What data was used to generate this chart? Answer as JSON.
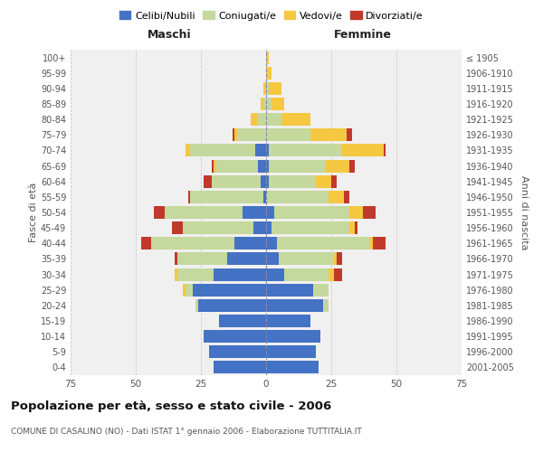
{
  "age_groups": [
    "0-4",
    "5-9",
    "10-14",
    "15-19",
    "20-24",
    "25-29",
    "30-34",
    "35-39",
    "40-44",
    "45-49",
    "50-54",
    "55-59",
    "60-64",
    "65-69",
    "70-74",
    "75-79",
    "80-84",
    "85-89",
    "90-94",
    "95-99",
    "100+"
  ],
  "birth_years": [
    "2001-2005",
    "1996-2000",
    "1991-1995",
    "1986-1990",
    "1981-1985",
    "1976-1980",
    "1971-1975",
    "1966-1970",
    "1961-1965",
    "1956-1960",
    "1951-1955",
    "1946-1950",
    "1941-1945",
    "1936-1940",
    "1931-1935",
    "1926-1930",
    "1921-1925",
    "1916-1920",
    "1911-1915",
    "1906-1910",
    "≤ 1905"
  ],
  "males": {
    "celibe": [
      20,
      22,
      24,
      18,
      26,
      28,
      20,
      15,
      12,
      5,
      9,
      1,
      2,
      3,
      4,
      0,
      0,
      0,
      0,
      0,
      0
    ],
    "coniugato": [
      0,
      0,
      0,
      0,
      1,
      3,
      14,
      19,
      32,
      27,
      30,
      28,
      19,
      16,
      25,
      11,
      3,
      1,
      0,
      0,
      0
    ],
    "vedovo": [
      0,
      0,
      0,
      0,
      0,
      1,
      1,
      0,
      0,
      0,
      0,
      0,
      0,
      1,
      2,
      1,
      3,
      1,
      1,
      0,
      0
    ],
    "divorziato": [
      0,
      0,
      0,
      0,
      0,
      0,
      0,
      1,
      4,
      4,
      4,
      1,
      3,
      1,
      0,
      1,
      0,
      0,
      0,
      0,
      0
    ]
  },
  "females": {
    "nubile": [
      20,
      19,
      21,
      17,
      22,
      18,
      7,
      5,
      4,
      2,
      3,
      0,
      1,
      1,
      1,
      0,
      0,
      0,
      0,
      0,
      0
    ],
    "coniugata": [
      0,
      0,
      0,
      0,
      2,
      6,
      17,
      21,
      36,
      30,
      29,
      24,
      18,
      22,
      28,
      17,
      6,
      2,
      1,
      0,
      0
    ],
    "vedova": [
      0,
      0,
      0,
      0,
      0,
      0,
      2,
      1,
      1,
      2,
      5,
      6,
      6,
      9,
      16,
      14,
      11,
      5,
      5,
      2,
      1
    ],
    "divorziata": [
      0,
      0,
      0,
      0,
      0,
      0,
      3,
      2,
      5,
      1,
      5,
      2,
      2,
      2,
      1,
      2,
      0,
      0,
      0,
      0,
      0
    ]
  },
  "colors": {
    "celibe": "#4472C4",
    "coniugato": "#C5D89D",
    "vedovo": "#F5C842",
    "divorziato": "#C0392B"
  },
  "xlim": 75,
  "title": "Popolazione per età, sesso e stato civile - 2006",
  "subtitle": "COMUNE DI CASALINO (NO) - Dati ISTAT 1° gennaio 2006 - Elaborazione TUTTITALIA.IT",
  "ylabel_left": "Fasce di età",
  "ylabel_right": "Anni di nascita",
  "xlabel_left": "Maschi",
  "xlabel_right": "Femmine"
}
